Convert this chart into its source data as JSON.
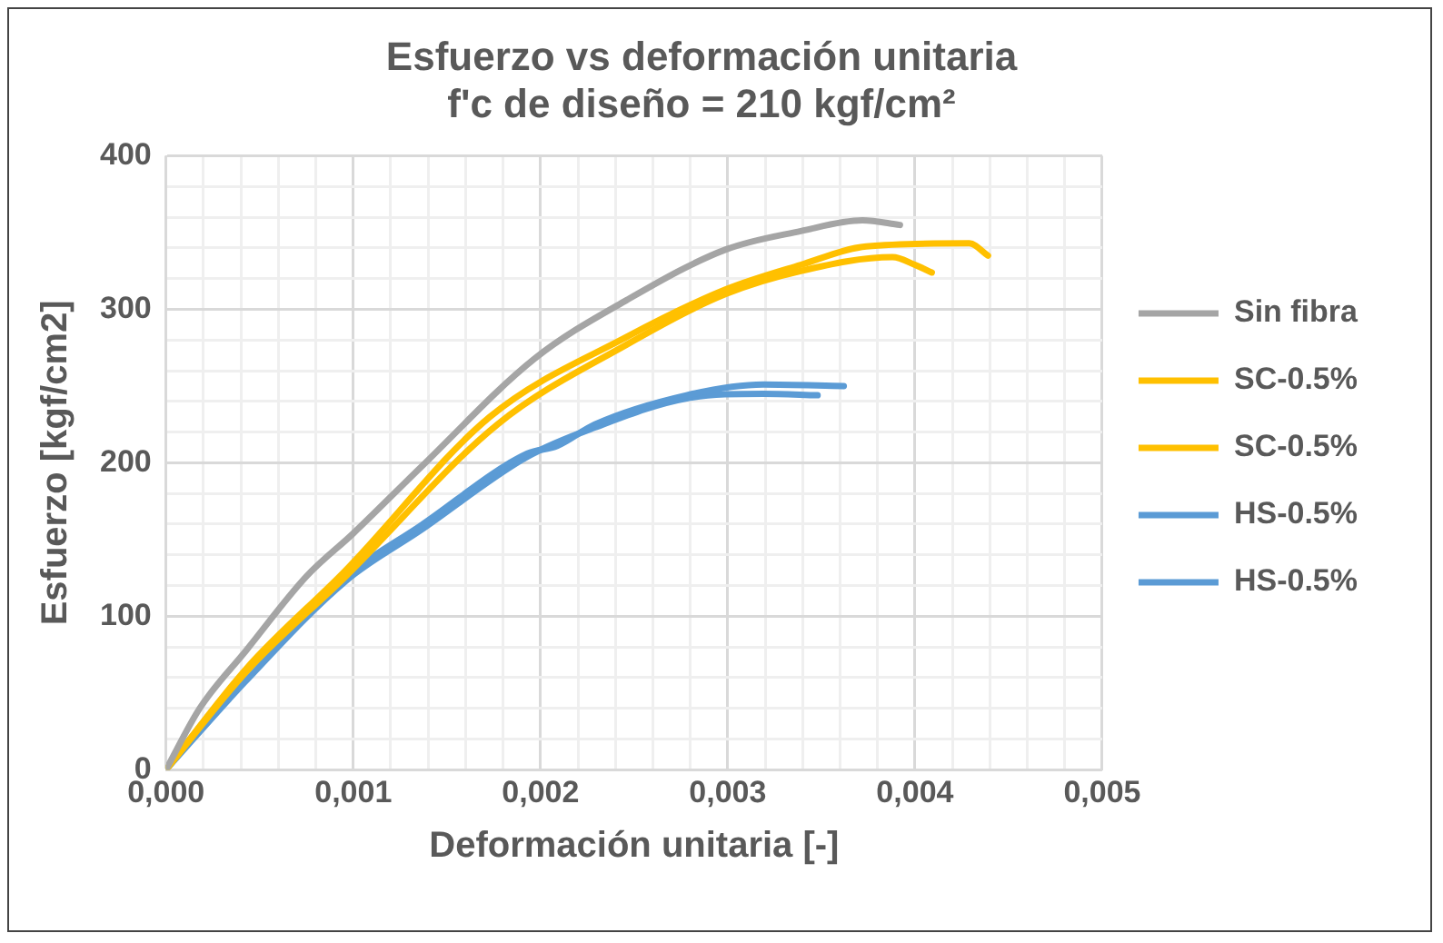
{
  "chart_data": {
    "type": "line",
    "title": [
      "Esfuerzo vs deformación unitaria",
      "f'c de diseño = 210 kgf/cm²"
    ],
    "xlabel": "Deformación unitaria [-]",
    "ylabel": "Esfuerzo [kgf/cm2]",
    "xlim": [
      0,
      0.005
    ],
    "ylim": [
      0,
      400
    ],
    "xticks": [
      {
        "value": 0,
        "label": "0,000"
      },
      {
        "value": 0.0002,
        "label": null
      },
      {
        "value": 0.0004,
        "label": null
      },
      {
        "value": 0.0006,
        "label": null
      },
      {
        "value": 0.0008,
        "label": null
      },
      {
        "value": 0.001,
        "label": "0,001"
      },
      {
        "value": 0.0012,
        "label": null
      },
      {
        "value": 0.0014,
        "label": null
      },
      {
        "value": 0.0016,
        "label": null
      },
      {
        "value": 0.0018,
        "label": null
      },
      {
        "value": 0.002,
        "label": "0,002"
      },
      {
        "value": 0.0022,
        "label": null
      },
      {
        "value": 0.0024,
        "label": null
      },
      {
        "value": 0.0026,
        "label": null
      },
      {
        "value": 0.0028,
        "label": null
      },
      {
        "value": 0.003,
        "label": "0,003"
      },
      {
        "value": 0.0032,
        "label": null
      },
      {
        "value": 0.0034,
        "label": null
      },
      {
        "value": 0.0036,
        "label": null
      },
      {
        "value": 0.0038,
        "label": null
      },
      {
        "value": 0.004,
        "label": "0,004"
      },
      {
        "value": 0.0042,
        "label": null
      },
      {
        "value": 0.0044,
        "label": null
      },
      {
        "value": 0.0046,
        "label": null
      },
      {
        "value": 0.0048,
        "label": null
      },
      {
        "value": 0.005,
        "label": "0,005"
      }
    ],
    "yticks": [
      0,
      {
        "value": 20,
        "label": null
      },
      {
        "value": 40,
        "label": null
      },
      {
        "value": 60,
        "label": null
      },
      {
        "value": 80,
        "label": null
      },
      100,
      {
        "value": 120,
        "label": null
      },
      {
        "value": 140,
        "label": null
      },
      {
        "value": 160,
        "label": null
      },
      {
        "value": 180,
        "label": null
      },
      200,
      {
        "value": 220,
        "label": null
      },
      {
        "value": 240,
        "label": null
      },
      {
        "value": 260,
        "label": null
      },
      {
        "value": 280,
        "label": null
      },
      300,
      {
        "value": 320,
        "label": null
      },
      {
        "value": 340,
        "label": null
      },
      {
        "value": 360,
        "label": null
      },
      {
        "value": 380,
        "label": null
      },
      400
    ],
    "grid": true,
    "legend": "right",
    "marker": "none",
    "line_style": "solid",
    "series": [
      {
        "name": "Sin fibra",
        "color": "#a5a5a5",
        "x": [
          0,
          0.00018,
          0.00043,
          0.00075,
          0.001,
          0.00136,
          0.00197,
          0.00246,
          0.00299,
          0.00339,
          0.00372,
          0.00392
        ],
        "values": [
          0,
          40,
          78,
          126,
          154,
          197,
          268,
          306,
          339,
          351,
          358,
          355
        ]
      },
      {
        "name": "SC-0.5%",
        "color": "#ffc000",
        "x": [
          0,
          0.00043,
          0.00096,
          0.00173,
          0.00246,
          0.00299,
          0.00339,
          0.00374,
          0.00429,
          0.00439
        ],
        "values": [
          0,
          66,
          130,
          230,
          282,
          313,
          329,
          341,
          343,
          335
        ]
      },
      {
        "name": "SC-0.5%",
        "color": "#ffc000",
        "x": [
          0,
          0.00043,
          0.00096,
          0.00177,
          0.00246,
          0.00299,
          0.00339,
          0.00388,
          0.004,
          0.00409
        ],
        "values": [
          0,
          64,
          126,
          225,
          277,
          310,
          325,
          334,
          329,
          324
        ]
      },
      {
        "name": "HS-0.5%",
        "color": "#5b9bd5",
        "x": [
          0,
          0.00039,
          0.00096,
          0.00136,
          0.00193,
          0.00209,
          0.00229,
          0.00278,
          0.00319,
          0.00362
        ],
        "values": [
          0,
          59,
          126,
          159,
          206,
          211,
          225,
          244,
          251,
          250
        ]
      },
      {
        "name": "HS-0.5%",
        "color": "#5b9bd5",
        "x": [
          0,
          0.00042,
          0.00096,
          0.00136,
          0.00193,
          0.00229,
          0.00278,
          0.00319,
          0.00348
        ],
        "values": [
          0,
          57,
          123,
          156,
          204,
          223,
          242,
          245,
          244
        ]
      }
    ]
  }
}
